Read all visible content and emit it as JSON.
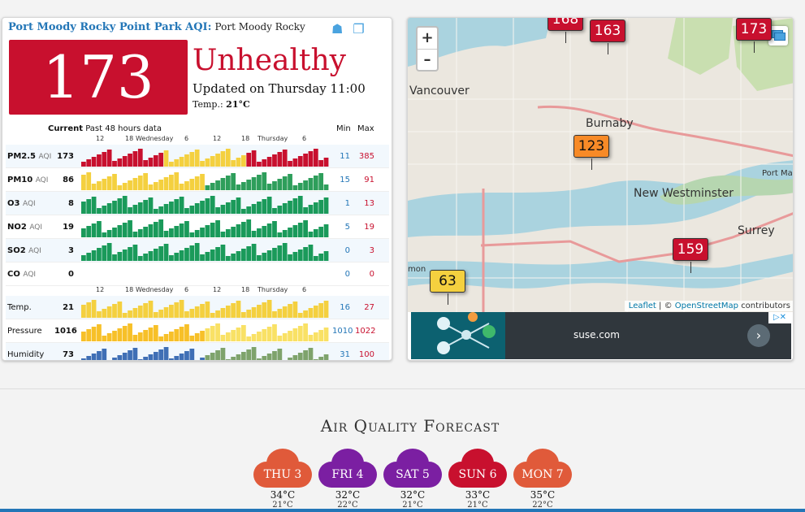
{
  "station": {
    "title": "Port Moody Rocky Point Park AQI:",
    "subtitle": "Port Moody Rocky Point Park",
    "aqi": "173",
    "status": "Unhealthy",
    "updated": "Updated on Thursday 11:00",
    "temp_label": "Temp.:",
    "temp_value": "21°C",
    "aqi_color": "#c8102e"
  },
  "table": {
    "current_label": "Current",
    "past_label": "Past 48 hours data",
    "min_label": "Min",
    "max_label": "Max",
    "time_axis": [
      "12",
      "18",
      "Wednesday",
      "6",
      "12",
      "18",
      "Thursday",
      "6"
    ],
    "rows": [
      {
        "name": "PM2.5",
        "unit": "AQI",
        "current": "173",
        "min": "11",
        "max": "385"
      },
      {
        "name": "PM10",
        "unit": "AQI",
        "current": "86",
        "min": "15",
        "max": "91"
      },
      {
        "name": "O3",
        "unit": "AQI",
        "current": "8",
        "min": "1",
        "max": "13"
      },
      {
        "name": "NO2",
        "unit": "AQI",
        "current": "19",
        "min": "5",
        "max": "19"
      },
      {
        "name": "SO2",
        "unit": "AQI",
        "current": "3",
        "min": "0",
        "max": "3"
      },
      {
        "name": "CO",
        "unit": "AQI",
        "current": "0",
        "min": "0",
        "max": "0"
      },
      {
        "name": "Temp.",
        "unit": "",
        "current": "21",
        "min": "16",
        "max": "27"
      },
      {
        "name": "Pressure",
        "unit": "",
        "current": "1016",
        "min": "1010",
        "max": "1022"
      },
      {
        "name": "Humidity",
        "unit": "",
        "current": "73",
        "min": "31",
        "max": "100"
      }
    ]
  },
  "map": {
    "zoom_in": "+",
    "zoom_out": "–",
    "labels": [
      "Vancouver",
      "Burnaby",
      "New Westminster",
      "Surrey",
      "Port Ma",
      "mon"
    ],
    "markers": [
      {
        "value": "163",
        "color": "#c8102e"
      },
      {
        "value": "173",
        "color": "#c8102e"
      },
      {
        "value": "123",
        "color": "#f78a27"
      },
      {
        "value": "159",
        "color": "#c8102e"
      },
      {
        "value": "63",
        "color": "#f4d03f"
      },
      {
        "value": "168",
        "color": "#c8102e"
      }
    ],
    "attribution_leaflet": "Leaflet",
    "attribution_sep": "| ©",
    "attribution_osm": "OpenStreetMap",
    "attribution_tail": "contributors"
  },
  "ad": {
    "text": "suse.com",
    "arrow": "›",
    "close": "▷✕"
  },
  "forecast": {
    "title": "Air Quality Forecast",
    "days": [
      {
        "day": "THU 3",
        "hi": "34°C",
        "lo": "21°C",
        "color": "#e05a3a"
      },
      {
        "day": "FRI 4",
        "hi": "32°C",
        "lo": "22°C",
        "color": "#7b1fa2"
      },
      {
        "day": "SAT 5",
        "hi": "32°C",
        "lo": "21°C",
        "color": "#7b1fa2"
      },
      {
        "day": "SUN 6",
        "hi": "33°C",
        "lo": "21°C",
        "color": "#c8102e"
      },
      {
        "day": "MON 7",
        "hi": "35°C",
        "lo": "22°C",
        "color": "#e05a3a"
      }
    ]
  }
}
